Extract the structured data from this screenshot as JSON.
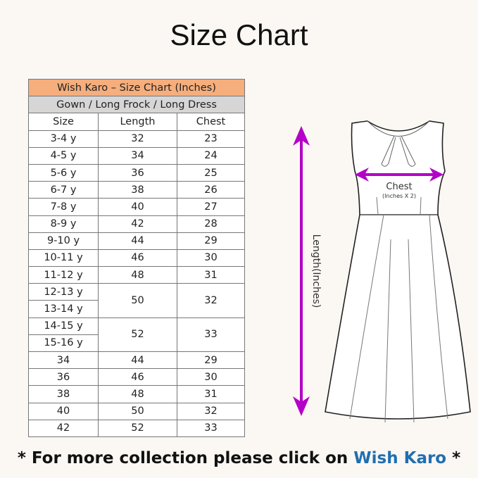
{
  "title": "Size Chart",
  "table": {
    "title": "Wish Karo – Size Chart (Inches)",
    "subtitle": "Gown / Long Frock / Long Dress",
    "columns": [
      "Size",
      "Length",
      "Chest"
    ],
    "rows": [
      {
        "size": "3-4 y",
        "length": "32",
        "chest": "23"
      },
      {
        "size": "4-5 y",
        "length": "34",
        "chest": "24"
      },
      {
        "size": "5-6 y",
        "length": "36",
        "chest": "25"
      },
      {
        "size": "6-7 y",
        "length": "38",
        "chest": "26"
      },
      {
        "size": "7-8 y",
        "length": "40",
        "chest": "27"
      },
      {
        "size": "8-9 y",
        "length": "42",
        "chest": "28"
      },
      {
        "size": "9-10 y",
        "length": "44",
        "chest": "29"
      },
      {
        "size": "10-11 y",
        "length": "46",
        "chest": "30"
      },
      {
        "size": "11-12 y",
        "length": "48",
        "chest": "31"
      },
      {
        "size": "12-13 y",
        "length": "50",
        "chest": "32"
      },
      {
        "size": "13-14 y"
      },
      {
        "size": "14-15 y",
        "length": "52",
        "chest": "33"
      },
      {
        "size": "15-16 y"
      },
      {
        "size": "34",
        "length": "44",
        "chest": "29"
      },
      {
        "size": "36",
        "length": "46",
        "chest": "30"
      },
      {
        "size": "38",
        "length": "48",
        "chest": "31"
      },
      {
        "size": "40",
        "length": "50",
        "chest": "32"
      },
      {
        "size": "42",
        "length": "52",
        "chest": "33"
      }
    ]
  },
  "diagram": {
    "length_label": "Length(Inches)",
    "chest_label": "Chest",
    "chest_note": "(Inches X 2)",
    "arrow_color": "#b400c8"
  },
  "footer": {
    "prefix": "* For more collection please click on ",
    "brand": "Wish Karo",
    "suffix": " *",
    "brand_color": "#1f6fb0"
  }
}
